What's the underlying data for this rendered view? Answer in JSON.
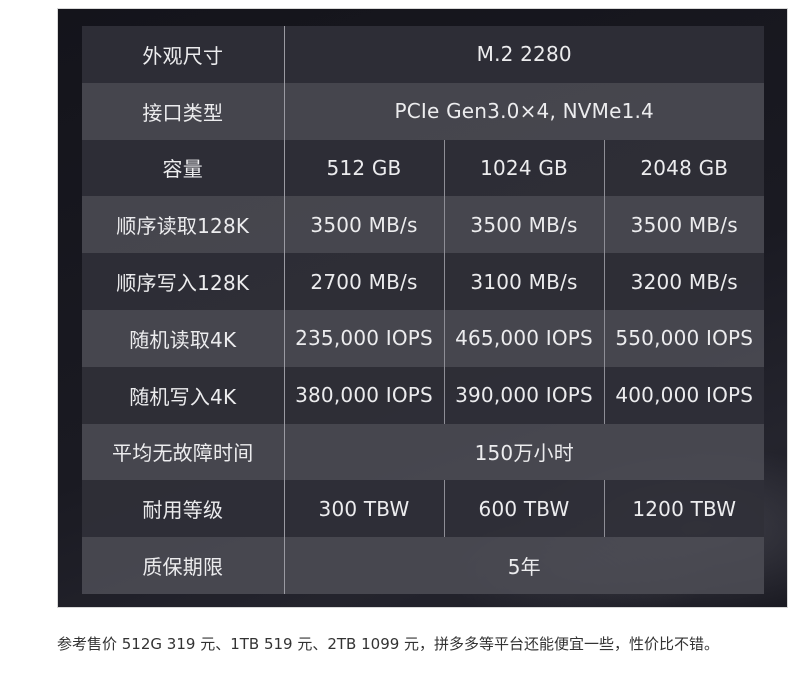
{
  "spec_table": {
    "rows": [
      {
        "label": "外观尺寸",
        "merged": true,
        "value": "M.2 2280"
      },
      {
        "label": "接口类型",
        "merged": true,
        "value": "PCIe Gen3.0×4, NVMe1.4"
      },
      {
        "label": "容量",
        "merged": false,
        "values": [
          "512 GB",
          "1024 GB",
          "2048 GB"
        ]
      },
      {
        "label": "顺序读取128K",
        "merged": false,
        "values": [
          "3500 MB/s",
          "3500 MB/s",
          "3500 MB/s"
        ]
      },
      {
        "label": "顺序写入128K",
        "merged": false,
        "values": [
          "2700 MB/s",
          "3100 MB/s",
          "3200 MB/s"
        ]
      },
      {
        "label": "随机读取4K",
        "merged": false,
        "values": [
          "235,000 IOPS",
          "465,000 IOPS",
          "550,000 IOPS"
        ]
      },
      {
        "label": "随机写入4K",
        "merged": false,
        "values": [
          "380,000 IOPS",
          "390,000 IOPS",
          "400,000 IOPS"
        ]
      },
      {
        "label": "平均无故障时间",
        "merged": true,
        "value": "150万小时"
      },
      {
        "label": "耐用等级",
        "merged": false,
        "values": [
          "300 TBW",
          "600 TBW",
          "1200 TBW"
        ]
      },
      {
        "label": "质保期限",
        "merged": true,
        "value": "5年"
      }
    ]
  },
  "caption": {
    "text": "参考售价 512G 319 元、1TB 519 元、2TB 1099 元，拼多多等平台还能便宜一些，性价比不错。"
  },
  "colors": {
    "panel_bg": "#17171f",
    "row_dark": "#303038",
    "row_light": "#4c4c54",
    "cell_text": "#ececee",
    "divider": "#9a9aa2",
    "caption_text": "#333333"
  }
}
